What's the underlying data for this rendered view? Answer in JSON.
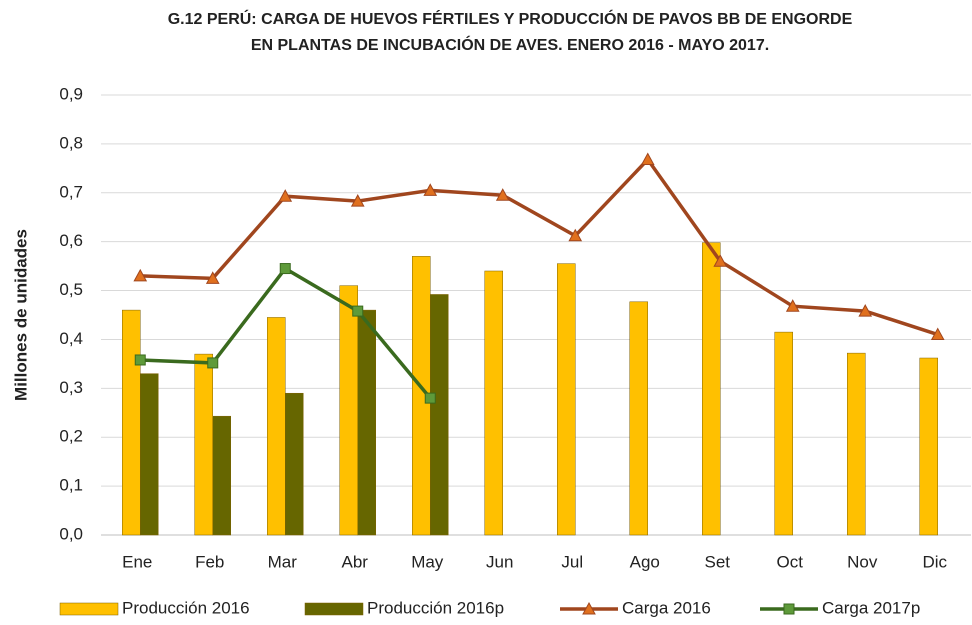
{
  "chart_data": {
    "type": "bar",
    "title": [
      "G.12  PERÚ: CARGA DE HUEVOS FÉRTILES Y PRODUCCIÓN DE PAVOS BB DE ENGORDE",
      "EN PLANTAS DE INCUBACIÓN DE AVES. ENERO 2016 - MAYO 2017."
    ],
    "y_label": "Millones de unidades",
    "categories": [
      "Ene",
      "Feb",
      "Mar",
      "Abr",
      "May",
      "Jun",
      "Jul",
      "Ago",
      "Set",
      "Oct",
      "Nov",
      "Dic"
    ],
    "series": [
      {
        "name": "Producción 2016",
        "type": "bar",
        "color": "#FFC000",
        "values": [
          0.46,
          0.37,
          0.445,
          0.51,
          0.57,
          0.54,
          0.555,
          0.477,
          0.598,
          0.415,
          0.372,
          0.362
        ]
      },
      {
        "name": "Producción 2016p",
        "type": "bar",
        "color": "#666600",
        "values": [
          0.33,
          0.243,
          0.29,
          0.46,
          0.492,
          null,
          null,
          null,
          null,
          null,
          null,
          null
        ]
      },
      {
        "name": "Carga 2016",
        "type": "line",
        "marker": "triangle",
        "color": "#A0461E",
        "marker_color": "#E0701E",
        "values": [
          0.53,
          0.525,
          0.693,
          0.683,
          0.705,
          0.695,
          0.612,
          0.768,
          0.56,
          0.468,
          0.458,
          0.41
        ]
      },
      {
        "name": "Carga 2017p",
        "type": "line",
        "marker": "square",
        "color": "#3A6A1E",
        "marker_color": "#5E9A3A",
        "values": [
          0.358,
          0.352,
          0.545,
          0.458,
          0.28,
          null,
          null,
          null,
          null,
          null,
          null,
          null
        ]
      }
    ],
    "ylim": [
      0,
      0.9
    ],
    "yticks": [
      {
        "value": 0,
        "label": "0,0"
      },
      {
        "value": 0.1,
        "label": "0,1"
      },
      {
        "value": 0.2,
        "label": "0,2"
      },
      {
        "value": 0.3,
        "label": "0,3"
      },
      {
        "value": 0.4,
        "label": "0,4"
      },
      {
        "value": 0.5,
        "label": "0,5"
      },
      {
        "value": 0.6,
        "label": "0,6"
      },
      {
        "value": 0.7,
        "label": "0,7"
      },
      {
        "value": 0.8,
        "label": "0,8"
      },
      {
        "value": 0.9,
        "label": "0,9"
      }
    ],
    "grid": true,
    "legend": "bottom"
  }
}
